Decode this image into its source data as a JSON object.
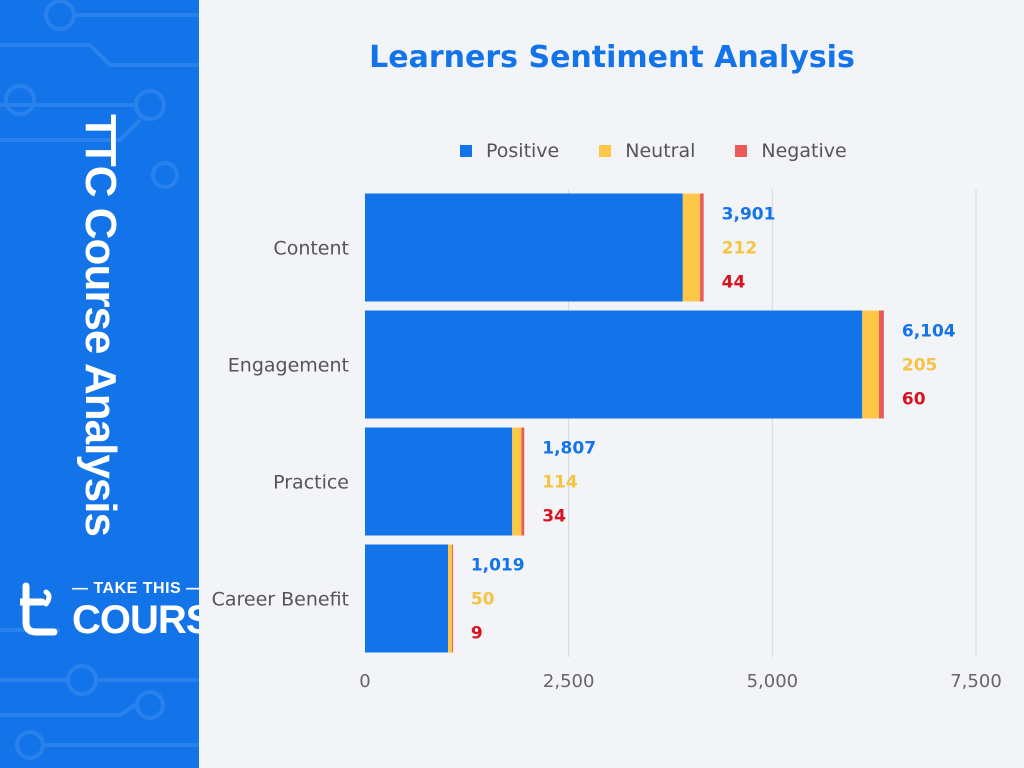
{
  "sidebar": {
    "vertical_title": "TTC Course Analysis",
    "logo_line1": "TAKE THIS",
    "logo_line2": "COURSE",
    "logo_icon": "t-letter-icon"
  },
  "colors": {
    "sidebar": "#1374e9",
    "positive": "#1374e9",
    "neutral": "#ffc747",
    "negative": "#eb5a5a",
    "positive_label": "#1374e9",
    "neutral_label": "#f6c342",
    "negative_label": "#d9121f"
  },
  "chart_data": {
    "type": "bar",
    "orientation": "horizontal",
    "stacked": true,
    "title": "Learners Sentiment Analysis",
    "categories": [
      "Content",
      "Engagement",
      "Practice",
      "Career Benefit"
    ],
    "series": [
      {
        "name": "Positive",
        "values": [
          3901,
          6104,
          1807,
          1019
        ]
      },
      {
        "name": "Neutral",
        "values": [
          212,
          205,
          114,
          50
        ]
      },
      {
        "name": "Negative",
        "values": [
          44,
          60,
          34,
          9
        ]
      }
    ],
    "data_labels": {
      "positive": [
        "3,901",
        "6,104",
        "1,807",
        "1,019"
      ],
      "neutral": [
        "212",
        "205",
        "114",
        "50"
      ],
      "negative": [
        "44",
        "60",
        "34",
        "9"
      ]
    },
    "xlim": [
      0,
      7500
    ],
    "xticks": [
      0,
      2500,
      5000,
      7500
    ],
    "xtick_labels": [
      "0",
      "2,500",
      "5,000",
      "7,500"
    ],
    "grid": "vertical",
    "legend_position": "top"
  }
}
